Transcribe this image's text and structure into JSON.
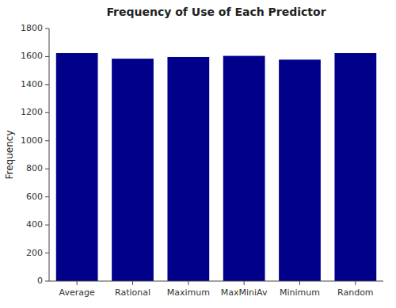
{
  "chart_data": {
    "type": "bar",
    "title": "Frequency of Use of Each Predictor",
    "ylabel": "Frequency",
    "categories": [
      "Average",
      "Rational",
      "Maximum",
      "MaxMiniAv",
      "Minimum",
      "Random"
    ],
    "values": [
      1625,
      1585,
      1597,
      1605,
      1578,
      1625
    ],
    "color": "#00008B",
    "ylim": [
      0,
      1800
    ],
    "yticks": [
      0,
      200,
      400,
      600,
      800,
      1000,
      1200,
      1400,
      1600,
      1800
    ],
    "grid": false
  }
}
